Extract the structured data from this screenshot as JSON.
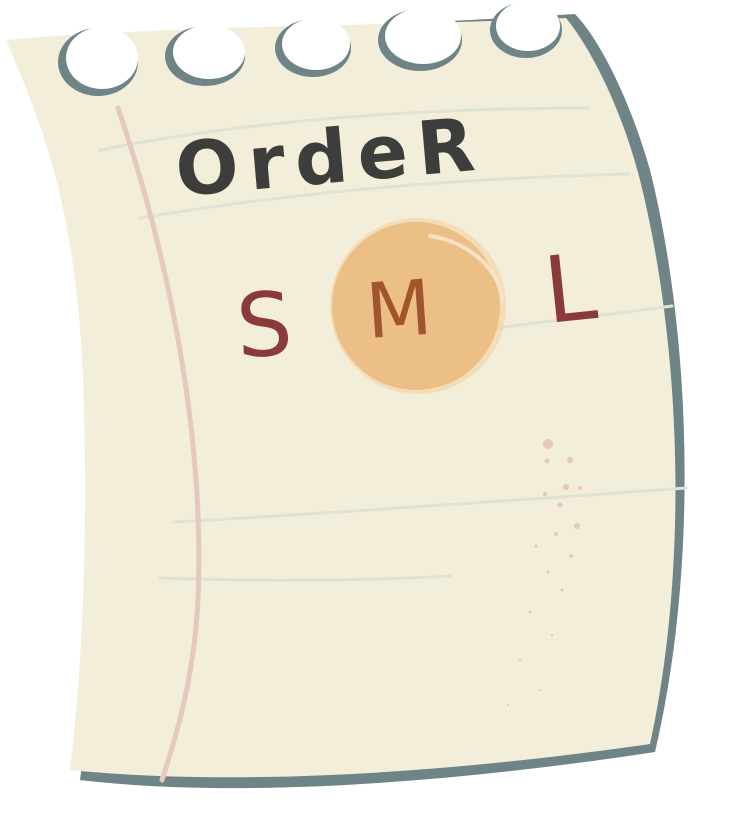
{
  "note": {
    "title": "OrdeR",
    "sizes": [
      {
        "label": "S",
        "selected": false
      },
      {
        "label": "M",
        "selected": true
      },
      {
        "label": "L",
        "selected": false
      }
    ]
  },
  "colors": {
    "paper": "#f2eed9",
    "paper_edge": "#6f8486",
    "margin_line": "#e6c8bf",
    "rule_line": "#dfe3d6",
    "title_ink": "#3d3d3b",
    "size_ink": "#8b3a3a",
    "selected_circle": "#ebbf85",
    "selected_circle_edge": "#f3d6a9",
    "selected_ink": "#a0552f",
    "stain": "#e7c7b8"
  }
}
